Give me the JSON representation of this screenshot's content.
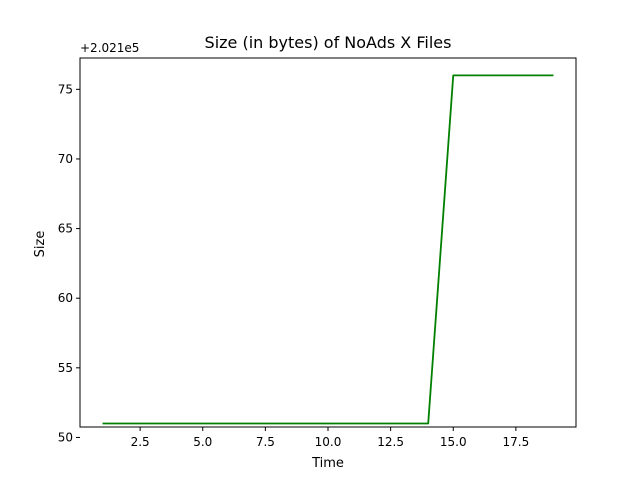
{
  "chart_data": {
    "type": "line",
    "title": "Size (in bytes) of NoAds X Files",
    "xlabel": "Time",
    "ylabel": "Size",
    "y_offset_label": "+2.021e5",
    "xlim": [
      0.1,
      19.9
    ],
    "ylim": [
      50.75,
      77.25
    ],
    "x_ticks": [
      2.5,
      5.0,
      7.5,
      10.0,
      12.5,
      15.0,
      17.5
    ],
    "x_tick_labels": [
      "2.5",
      "5.0",
      "7.5",
      "10.0",
      "12.5",
      "15.0",
      "17.5"
    ],
    "y_ticks": [
      50,
      55,
      60,
      65,
      70,
      75
    ],
    "y_tick_labels": [
      "50",
      "55",
      "60",
      "65",
      "70",
      "75"
    ],
    "grid": false,
    "series": [
      {
        "color": "#008000",
        "x": [
          1,
          2,
          3,
          4,
          5,
          6,
          7,
          8,
          9,
          10,
          11,
          12,
          13,
          14,
          15,
          16,
          17,
          18,
          19
        ],
        "y": [
          51,
          51,
          51,
          51,
          51,
          51,
          51,
          51,
          51,
          51,
          51,
          51,
          51,
          51,
          76,
          76,
          76,
          76,
          76
        ]
      }
    ]
  }
}
